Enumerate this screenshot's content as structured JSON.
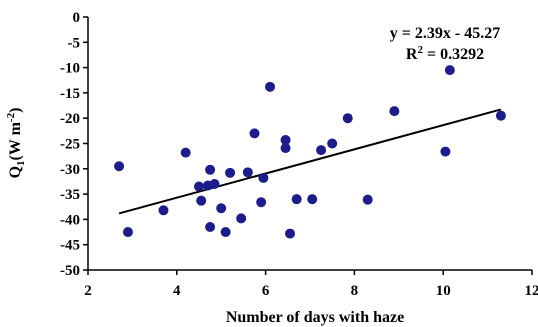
{
  "chart_data": {
    "type": "scatter",
    "xlabel": "Number of days with haze",
    "ylabel": {
      "main": "Q",
      "sub": "1",
      "unit_pre": "(W m",
      "unit_sup": "-2",
      "unit_post": ")"
    },
    "xlim": [
      2,
      12
    ],
    "ylim": [
      -50,
      0
    ],
    "xticks": [
      2,
      4,
      6,
      8,
      10,
      12
    ],
    "yticks": [
      0,
      -5,
      -10,
      -15,
      -20,
      -25,
      -30,
      -35,
      -40,
      -45,
      -50
    ],
    "grid": false,
    "legend": "none",
    "annotation": {
      "equation": "y = 2.39x - 45.27",
      "r2_prefix": "R",
      "r2_sup": "2",
      "r2_value": " = 0.3292"
    },
    "trendline": {
      "slope": 2.39,
      "intercept": -45.27,
      "x_range": [
        2.7,
        11.3
      ]
    },
    "points": [
      {
        "x": 2.7,
        "y": -29.5
      },
      {
        "x": 2.9,
        "y": -42.5
      },
      {
        "x": 3.7,
        "y": -38.2
      },
      {
        "x": 4.2,
        "y": -26.8
      },
      {
        "x": 4.5,
        "y": -33.5
      },
      {
        "x": 4.55,
        "y": -36.3
      },
      {
        "x": 4.7,
        "y": -33.3
      },
      {
        "x": 4.75,
        "y": -30.2
      },
      {
        "x": 4.75,
        "y": -41.5
      },
      {
        "x": 4.85,
        "y": -33.0
      },
      {
        "x": 5.0,
        "y": -37.8
      },
      {
        "x": 5.1,
        "y": -42.5
      },
      {
        "x": 5.2,
        "y": -30.8
      },
      {
        "x": 5.45,
        "y": -39.8
      },
      {
        "x": 5.6,
        "y": -30.7
      },
      {
        "x": 5.75,
        "y": -23.0
      },
      {
        "x": 5.9,
        "y": -36.6
      },
      {
        "x": 5.95,
        "y": -31.8
      },
      {
        "x": 6.1,
        "y": -13.8
      },
      {
        "x": 6.45,
        "y": -24.3
      },
      {
        "x": 6.45,
        "y": -25.9
      },
      {
        "x": 6.55,
        "y": -42.8
      },
      {
        "x": 6.7,
        "y": -36.0
      },
      {
        "x": 7.05,
        "y": -36.0
      },
      {
        "x": 7.25,
        "y": -26.3
      },
      {
        "x": 7.5,
        "y": -25.0
      },
      {
        "x": 7.85,
        "y": -20.0
      },
      {
        "x": 8.3,
        "y": -36.1
      },
      {
        "x": 8.9,
        "y": -18.6
      },
      {
        "x": 10.05,
        "y": -26.6
      },
      {
        "x": 10.15,
        "y": -10.5
      },
      {
        "x": 11.3,
        "y": -19.5
      }
    ],
    "colors": {
      "marker": "#1c1c8c",
      "line": "#000000",
      "axis": "#000000"
    }
  }
}
